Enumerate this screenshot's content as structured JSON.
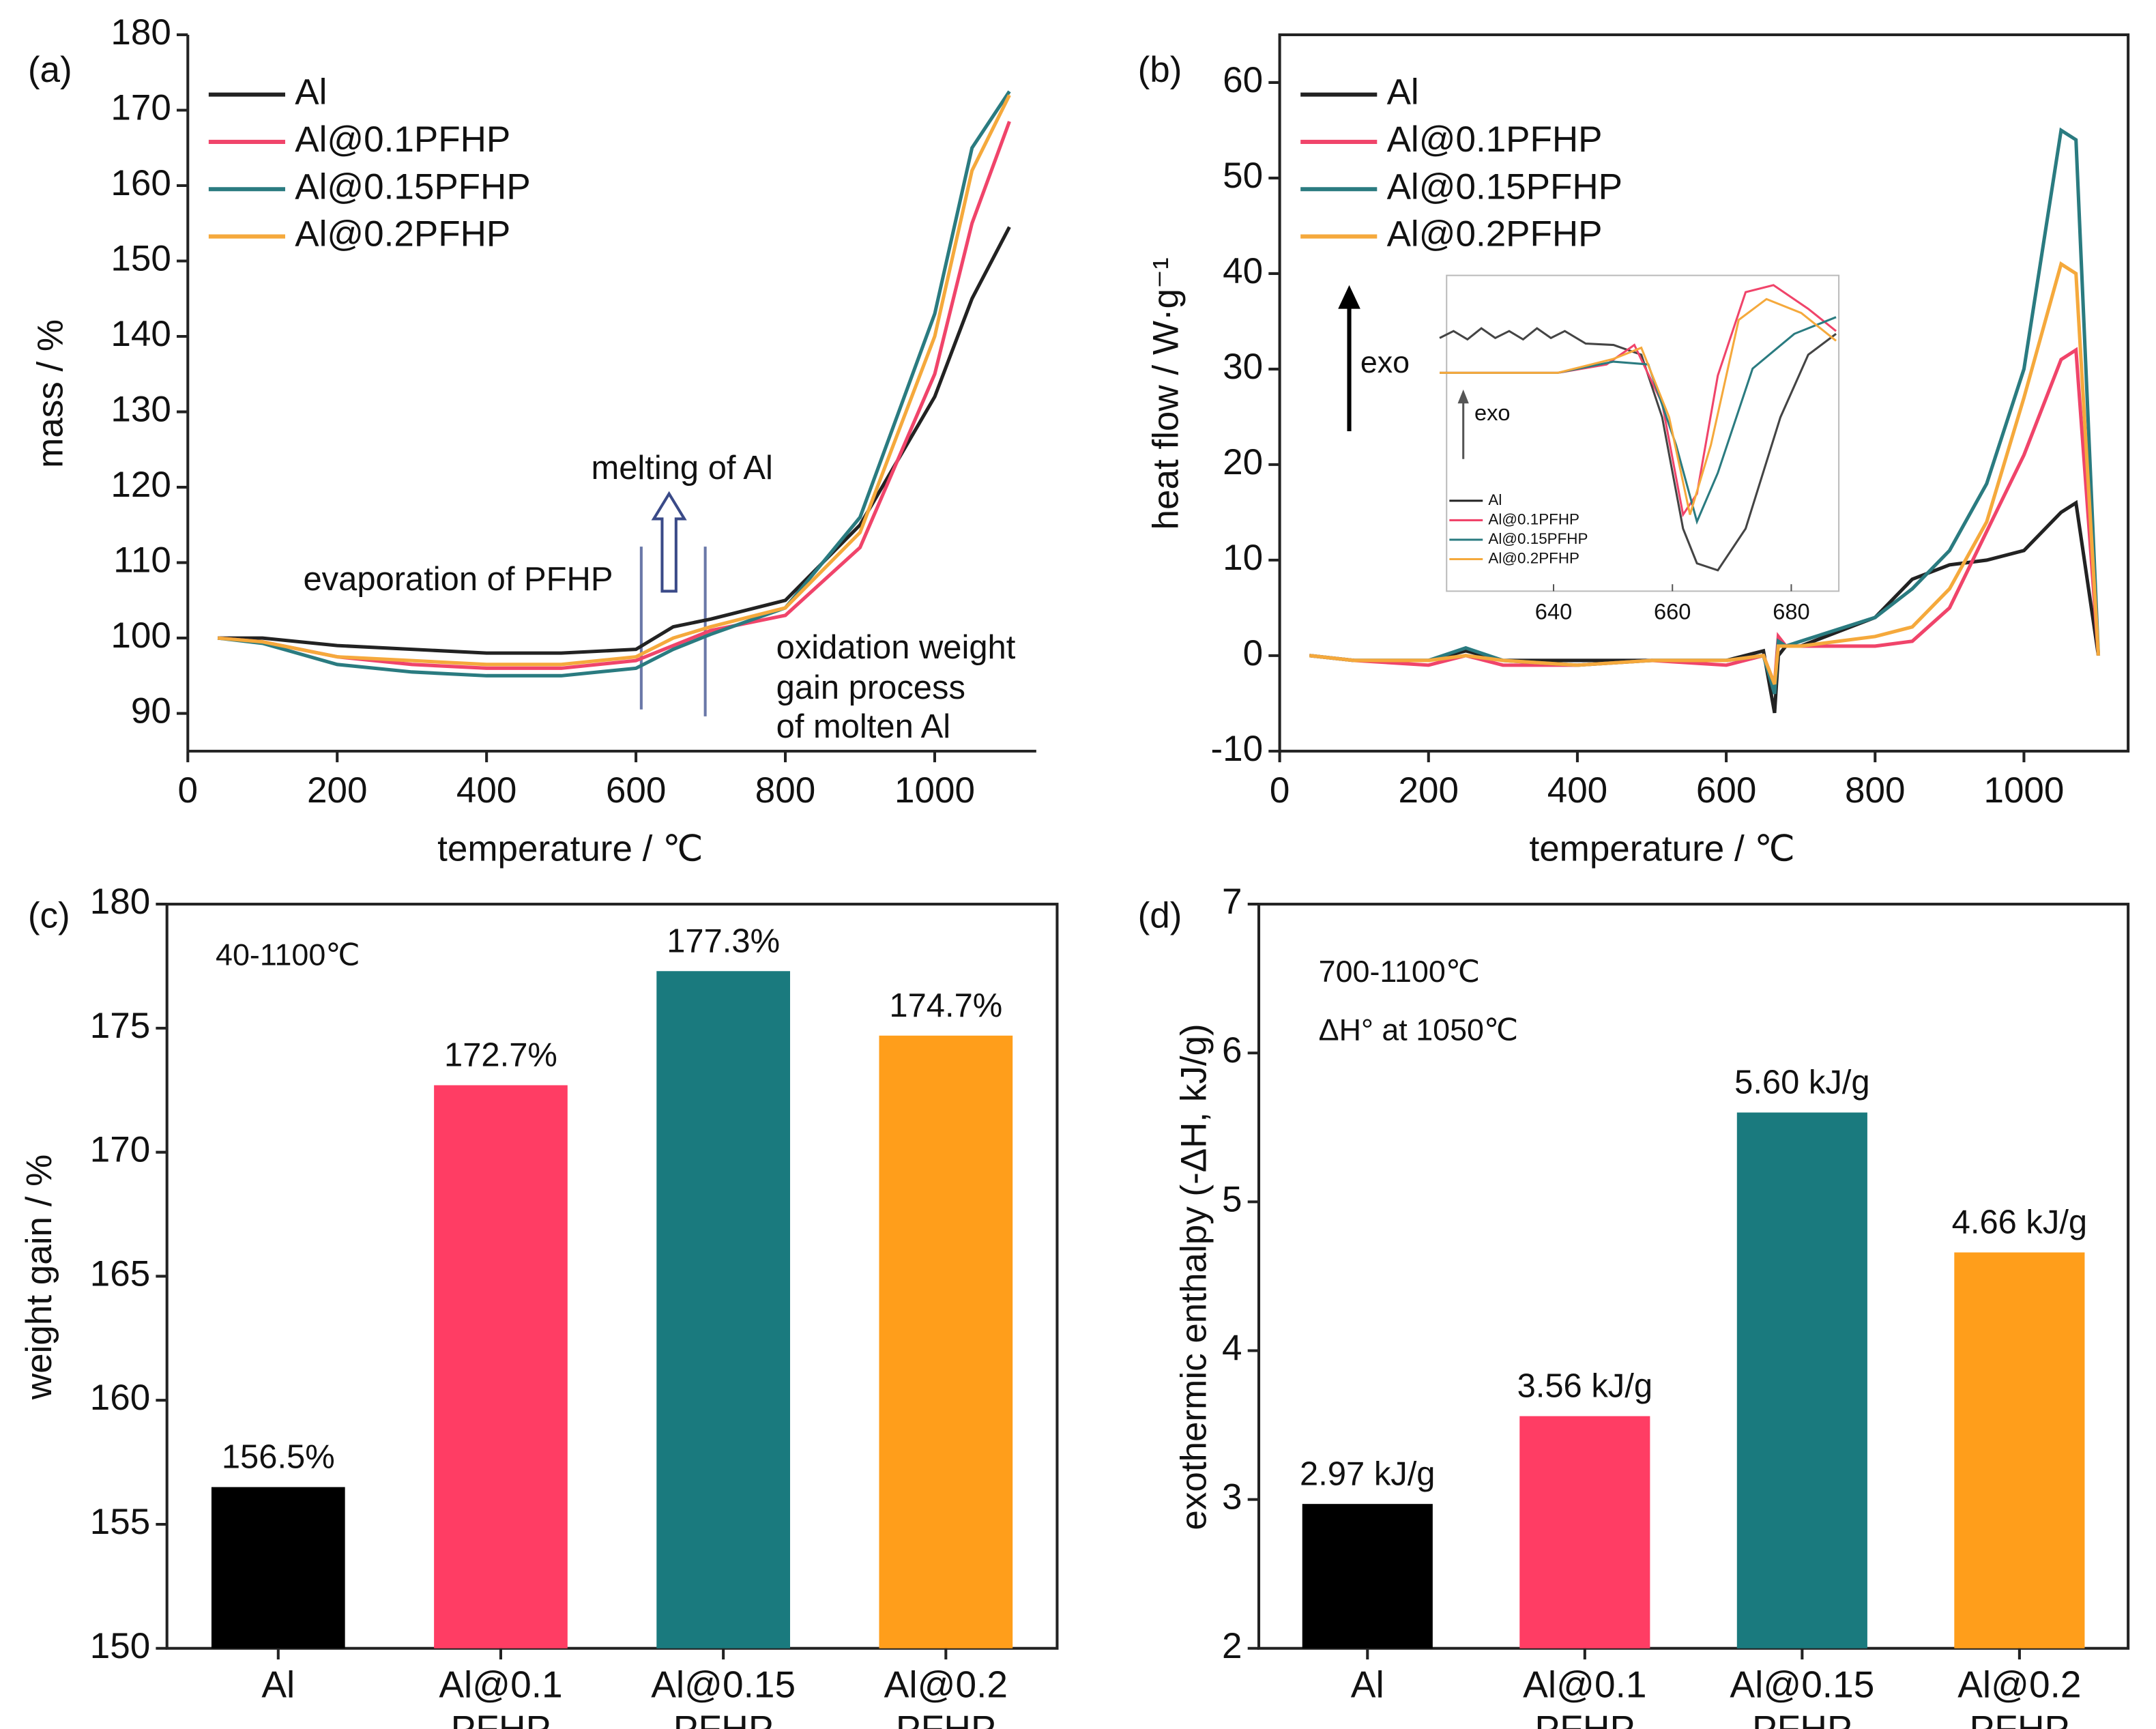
{
  "chart_data": [
    {
      "type": "line",
      "panel": "(a)",
      "x_label": "temperature / ℃",
      "y_label": "mass / %",
      "xlim": [
        0,
        1136
      ],
      "xticks": [
        0,
        200,
        400,
        600,
        800,
        1000
      ],
      "ylim": [
        85,
        180
      ],
      "yticks": [
        90,
        100,
        110,
        120,
        130,
        140,
        150,
        160,
        170,
        180
      ],
      "x": [
        40,
        100,
        200,
        300,
        400,
        500,
        600,
        650,
        700,
        800,
        900,
        1000,
        1050,
        1100
      ],
      "series": [
        {
          "name": "Al",
          "color": "#222222",
          "values": [
            100,
            100,
            99,
            98.5,
            98,
            98,
            98.5,
            101.5,
            102.5,
            105,
            115,
            132,
            145,
            154.5
          ]
        },
        {
          "name": "Al@0.1PFHP",
          "color": "#f0446a",
          "values": [
            100,
            99.5,
            97.5,
            96.5,
            96,
            96,
            97,
            99,
            101,
            103,
            112,
            135,
            155,
            168.5
          ]
        },
        {
          "name": "Al@0.15PFHP",
          "color": "#2a7b80",
          "values": [
            100,
            99.3,
            96.5,
            95.5,
            95,
            95,
            96,
            98.5,
            100.5,
            104,
            116,
            143,
            165,
            172.5
          ]
        },
        {
          "name": "Al@0.2PFHP",
          "color": "#f5a93c",
          "values": [
            100,
            99.5,
            97.5,
            97,
            96.5,
            96.5,
            97.5,
            100,
            101.5,
            104,
            114,
            140,
            162,
            172
          ]
        }
      ],
      "annotations": [
        "melting of Al",
        "evaporation of PFHP",
        "oxidation weight",
        "gain process",
        "of molten Al"
      ]
    },
    {
      "type": "line",
      "panel": "(b)",
      "x_label": "temperature / ℃",
      "y_label": "heat flow / W·g⁻¹",
      "xlim": [
        0,
        1140
      ],
      "xticks": [
        0,
        200,
        400,
        600,
        800,
        1000
      ],
      "ylim": [
        -10,
        65
      ],
      "yticks": [
        -10,
        0,
        10,
        20,
        30,
        40,
        50,
        60
      ],
      "x": [
        40,
        100,
        200,
        250,
        300,
        400,
        500,
        600,
        650,
        665,
        670,
        680,
        700,
        800,
        850,
        900,
        950,
        1000,
        1050,
        1070,
        1100
      ],
      "series": [
        {
          "name": "Al",
          "color": "#222222",
          "values": [
            0,
            -0.5,
            -0.5,
            0.5,
            -0.5,
            -0.5,
            -0.5,
            -0.5,
            0.5,
            -6,
            0,
            1,
            1,
            4,
            8,
            9.5,
            10,
            11,
            15,
            16,
            0
          ]
        },
        {
          "name": "Al@0.1PFHP",
          "color": "#f0446a",
          "values": [
            0,
            -0.5,
            -1,
            0,
            -1,
            -1,
            -0.5,
            -1,
            0,
            -3,
            2,
            1,
            1,
            1,
            1.5,
            5,
            13,
            21,
            31,
            32,
            0
          ]
        },
        {
          "name": "Al@0.15PFHP",
          "color": "#2a7b80",
          "values": [
            0,
            -0.5,
            -0.5,
            0.8,
            -0.5,
            -1,
            -0.5,
            -0.5,
            0,
            -4,
            1.5,
            1,
            1.5,
            4,
            7,
            11,
            18,
            30,
            55,
            54,
            0
          ]
        },
        {
          "name": "Al@0.2PFHP",
          "color": "#f5a93c",
          "values": [
            0,
            -0.5,
            -0.5,
            0,
            -0.5,
            -1,
            -0.5,
            -0.5,
            0,
            -3,
            1,
            1,
            1,
            2,
            3,
            7,
            14,
            27,
            41,
            40,
            0
          ]
        }
      ],
      "annotations": [
        "exo",
        "exo"
      ],
      "inset": {
        "xlim": [
          622,
          688
        ],
        "xticks": [
          640,
          660,
          680
        ]
      }
    },
    {
      "type": "bar",
      "panel": "(c)",
      "y_label": "weight gain / %",
      "categories": [
        [
          "Al"
        ],
        [
          "Al@0.1",
          "PFHP"
        ],
        [
          "Al@0.15",
          "PFHP"
        ],
        [
          "Al@0.2",
          "PFHP"
        ]
      ],
      "values": [
        156.5,
        172.7,
        177.3,
        174.7
      ],
      "value_labels": [
        "156.5%",
        "172.7%",
        "177.3%",
        "174.7%"
      ],
      "colors": [
        "#000000",
        "#ff3d64",
        "#1a7a7e",
        "#ff9e1b"
      ],
      "ylim": [
        150,
        180
      ],
      "yticks": [
        150,
        155,
        160,
        165,
        170,
        175,
        180
      ],
      "annotations": [
        "40-1100℃"
      ]
    },
    {
      "type": "bar",
      "panel": "(d)",
      "y_label": "exothermic enthalpy (-ΔH, kJ/g)",
      "categories": [
        [
          "Al"
        ],
        [
          "Al@0.1",
          "PFHP"
        ],
        [
          "Al@0.15",
          "PFHP"
        ],
        [
          "Al@0.2",
          "PFHP"
        ]
      ],
      "values": [
        2.97,
        3.56,
        5.6,
        4.66
      ],
      "value_labels": [
        "2.97 kJ/g",
        "3.56 kJ/g",
        "5.60 kJ/g",
        "4.66 kJ/g"
      ],
      "colors": [
        "#000000",
        "#ff3d64",
        "#1a7a7e",
        "#ff9e1b"
      ],
      "ylim": [
        2,
        7
      ],
      "yticks": [
        2,
        3,
        4,
        5,
        6,
        7
      ],
      "annotations": [
        "700-1100℃",
        "ΔH° at 1050℃"
      ]
    }
  ]
}
